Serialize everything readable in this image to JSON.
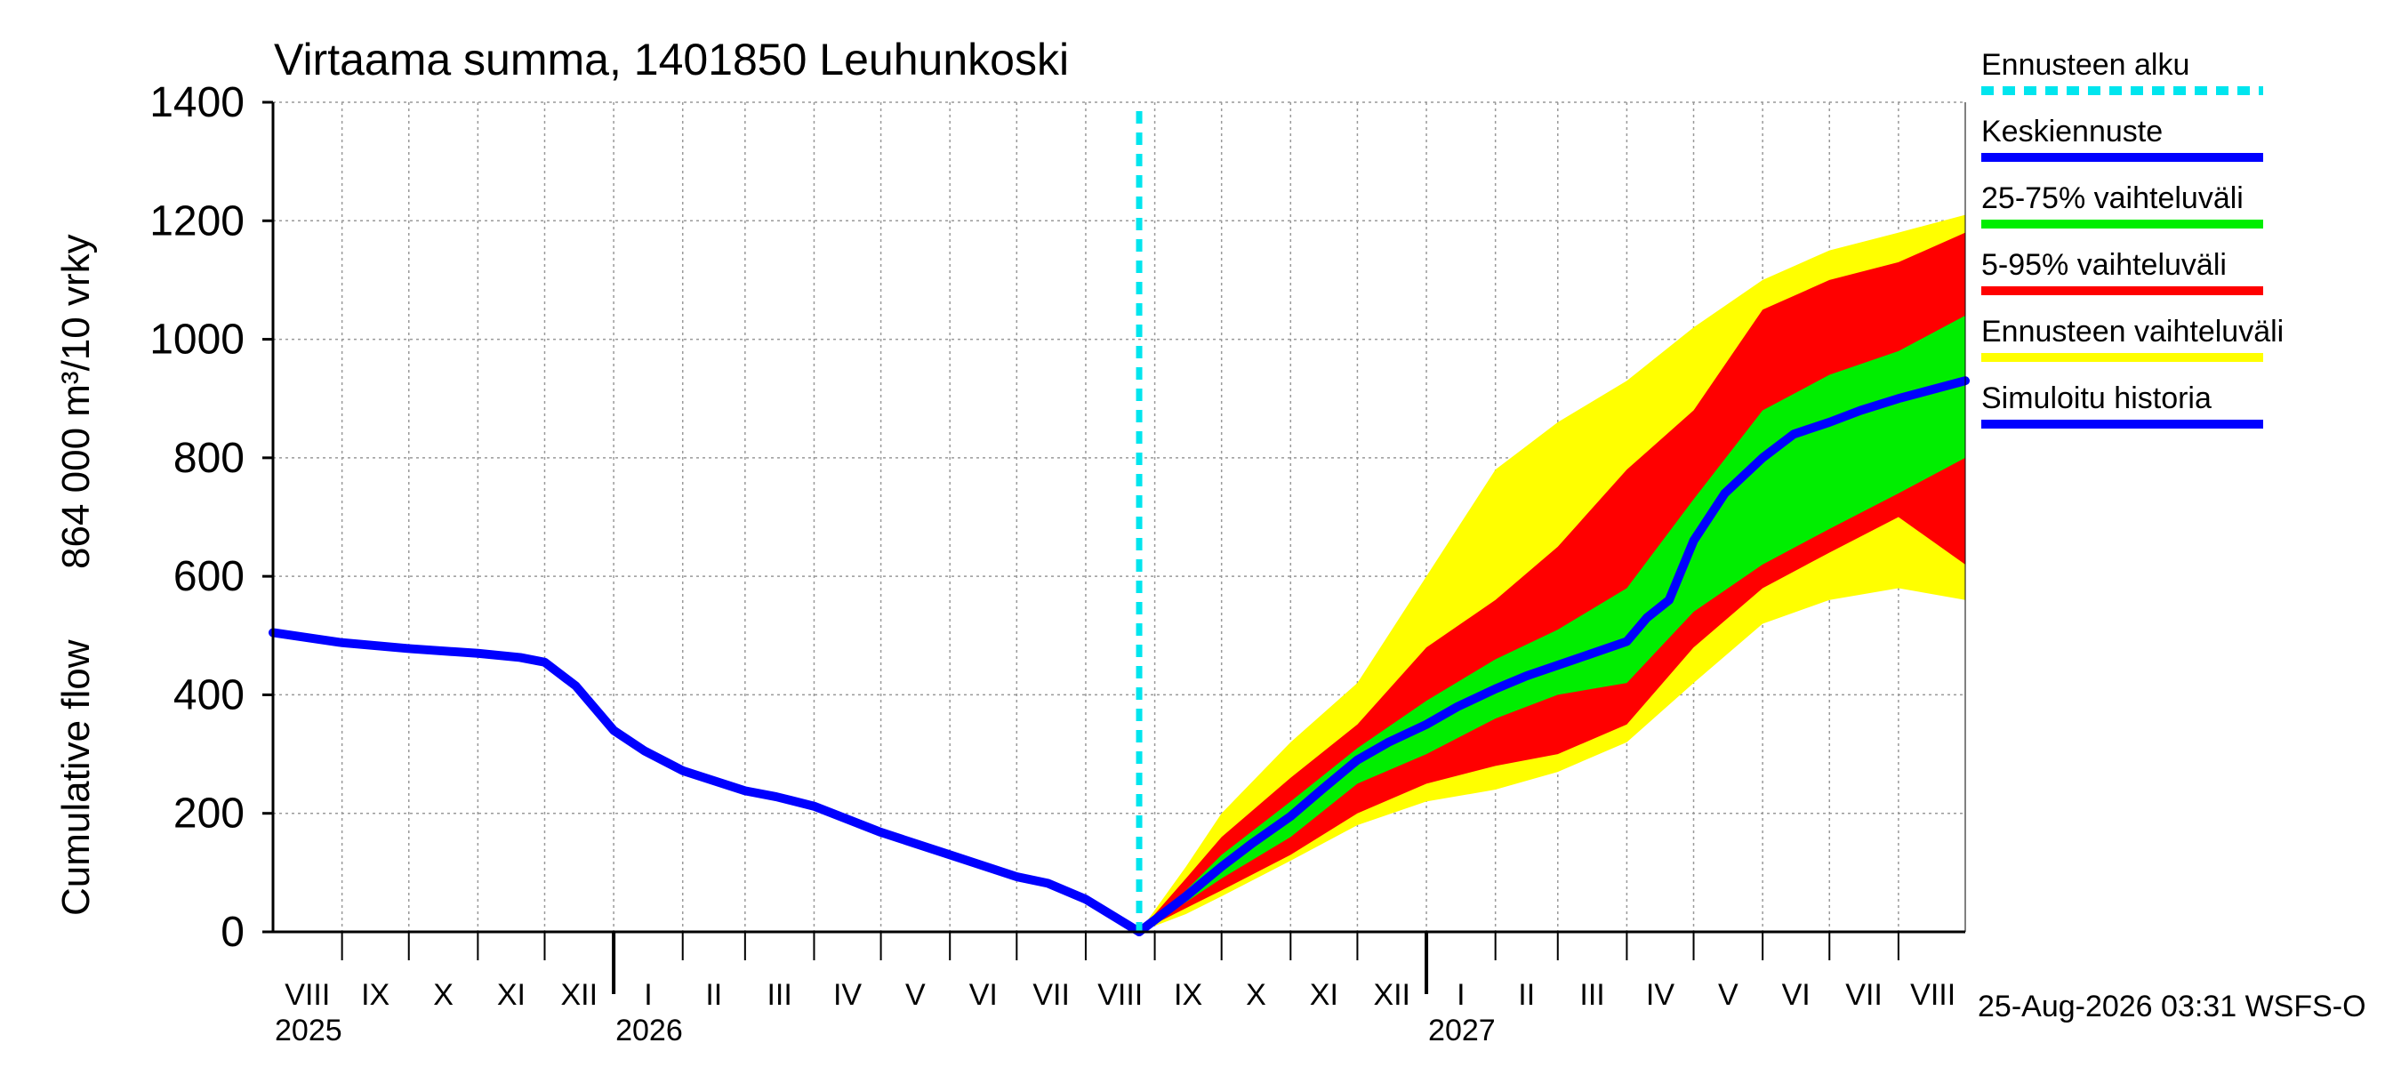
{
  "chart_data": {
    "type": "area",
    "title": "Virtaama summa, 1401850 Leuhunkoski",
    "ylabel_line1": "Cumulative flow",
    "ylabel_line2": "864 000 m³/10 vrky",
    "ylim": [
      0,
      1400
    ],
    "yticks": [
      0,
      200,
      400,
      600,
      800,
      1000,
      1200,
      1400
    ],
    "x_range": [
      "2025-08-01",
      "2027-08-31"
    ],
    "grid": true,
    "legend_position": "right",
    "forecast_start": "2026-08-25",
    "month_labels": [
      "VIII",
      "IX",
      "X",
      "XI",
      "XII",
      "I",
      "II",
      "III",
      "IV",
      "V",
      "VI",
      "VII",
      "VIII",
      "IX",
      "X",
      "XI",
      "XII",
      "I",
      "II",
      "III",
      "IV",
      "V",
      "VI",
      "VII",
      "VIII"
    ],
    "year_labels": [
      "2025",
      "2026",
      "2027"
    ],
    "footer": "25-Aug-2026 03:31 WSFS-O",
    "legend": [
      {
        "label": "Ennusteen alku",
        "color": "#00e5ee",
        "style": "dashed"
      },
      {
        "label": "Keskiennuste",
        "color": "#0000ff",
        "style": "solid"
      },
      {
        "label": "25-75% vaihteluväli",
        "color": "#00ee00",
        "style": "solid"
      },
      {
        "label": "5-95% vaihteluväli",
        "color": "#ff0000",
        "style": "solid"
      },
      {
        "label": "Ennusteen vaihteluväli",
        "color": "#ffff00",
        "style": "solid"
      },
      {
        "label": "Simuloitu historia",
        "color": "#0000ff",
        "style": "solid"
      }
    ],
    "series": [
      {
        "name": "Simuloitu historia",
        "color": "#0000ff",
        "x": [
          "2025-08-01",
          "2025-09-01",
          "2025-10-01",
          "2025-11-01",
          "2025-11-20",
          "2025-12-01",
          "2025-12-15",
          "2026-01-01",
          "2026-01-15",
          "2026-02-01",
          "2026-03-01",
          "2026-03-15",
          "2026-04-01",
          "2026-05-01",
          "2026-06-01",
          "2026-07-01",
          "2026-07-15",
          "2026-08-01",
          "2026-08-25"
        ],
        "values": [
          505,
          488,
          478,
          470,
          463,
          455,
          415,
          340,
          305,
          272,
          238,
          228,
          212,
          168,
          130,
          93,
          82,
          55,
          0
        ]
      },
      {
        "name": "Keskiennuste",
        "color": "#0000ff",
        "x": [
          "2026-08-25",
          "2026-09-15",
          "2026-10-01",
          "2026-10-15",
          "2026-11-01",
          "2026-11-15",
          "2026-12-01",
          "2026-12-15",
          "2027-01-01",
          "2027-01-15",
          "2027-02-01",
          "2027-02-15",
          "2027-03-01",
          "2027-03-15",
          "2027-04-01",
          "2027-04-10",
          "2027-04-20",
          "2027-05-01",
          "2027-05-15",
          "2027-06-01",
          "2027-06-15",
          "2027-07-01",
          "2027-07-15",
          "2027-08-01",
          "2027-08-31"
        ],
        "values": [
          0,
          60,
          110,
          150,
          195,
          240,
          290,
          320,
          350,
          380,
          410,
          432,
          450,
          468,
          490,
          530,
          560,
          660,
          740,
          800,
          840,
          860,
          880,
          900,
          930
        ]
      }
    ],
    "bands": [
      {
        "name": "Ennusteen vaihteluväli",
        "color": "#ffff00",
        "x": [
          "2026-08-25",
          "2026-09-15",
          "2026-10-01",
          "2026-11-01",
          "2026-12-01",
          "2027-01-01",
          "2027-02-01",
          "2027-03-01",
          "2027-04-01",
          "2027-05-01",
          "2027-06-01",
          "2027-07-01",
          "2027-08-01",
          "2027-08-31"
        ],
        "upper": [
          0,
          110,
          200,
          320,
          420,
          600,
          780,
          860,
          930,
          1020,
          1100,
          1150,
          1180,
          1210
        ],
        "lower": [
          0,
          30,
          60,
          120,
          180,
          220,
          240,
          270,
          320,
          420,
          520,
          560,
          580,
          560
        ]
      },
      {
        "name": "5-95% vaihteluväli",
        "color": "#ff0000",
        "x": [
          "2026-08-25",
          "2026-09-15",
          "2026-10-01",
          "2026-11-01",
          "2026-12-01",
          "2027-01-01",
          "2027-02-01",
          "2027-03-01",
          "2027-04-01",
          "2027-05-01",
          "2027-06-01",
          "2027-07-01",
          "2027-08-01",
          "2027-08-31"
        ],
        "upper": [
          0,
          90,
          160,
          260,
          350,
          480,
          560,
          650,
          780,
          880,
          1050,
          1100,
          1130,
          1180
        ],
        "lower": [
          0,
          40,
          70,
          130,
          200,
          250,
          280,
          300,
          350,
          480,
          580,
          640,
          700,
          620
        ]
      },
      {
        "name": "25-75% vaihteluväli",
        "color": "#00ee00",
        "x": [
          "2026-08-25",
          "2026-09-15",
          "2026-10-01",
          "2026-11-01",
          "2026-12-01",
          "2027-01-01",
          "2027-02-01",
          "2027-03-01",
          "2027-04-01",
          "2027-05-01",
          "2027-06-01",
          "2027-07-01",
          "2027-08-01",
          "2027-08-31"
        ],
        "upper": [
          0,
          70,
          130,
          220,
          310,
          390,
          460,
          510,
          580,
          730,
          880,
          940,
          980,
          1040
        ],
        "lower": [
          0,
          50,
          90,
          160,
          250,
          300,
          360,
          400,
          420,
          540,
          620,
          680,
          740,
          800
        ]
      }
    ]
  }
}
